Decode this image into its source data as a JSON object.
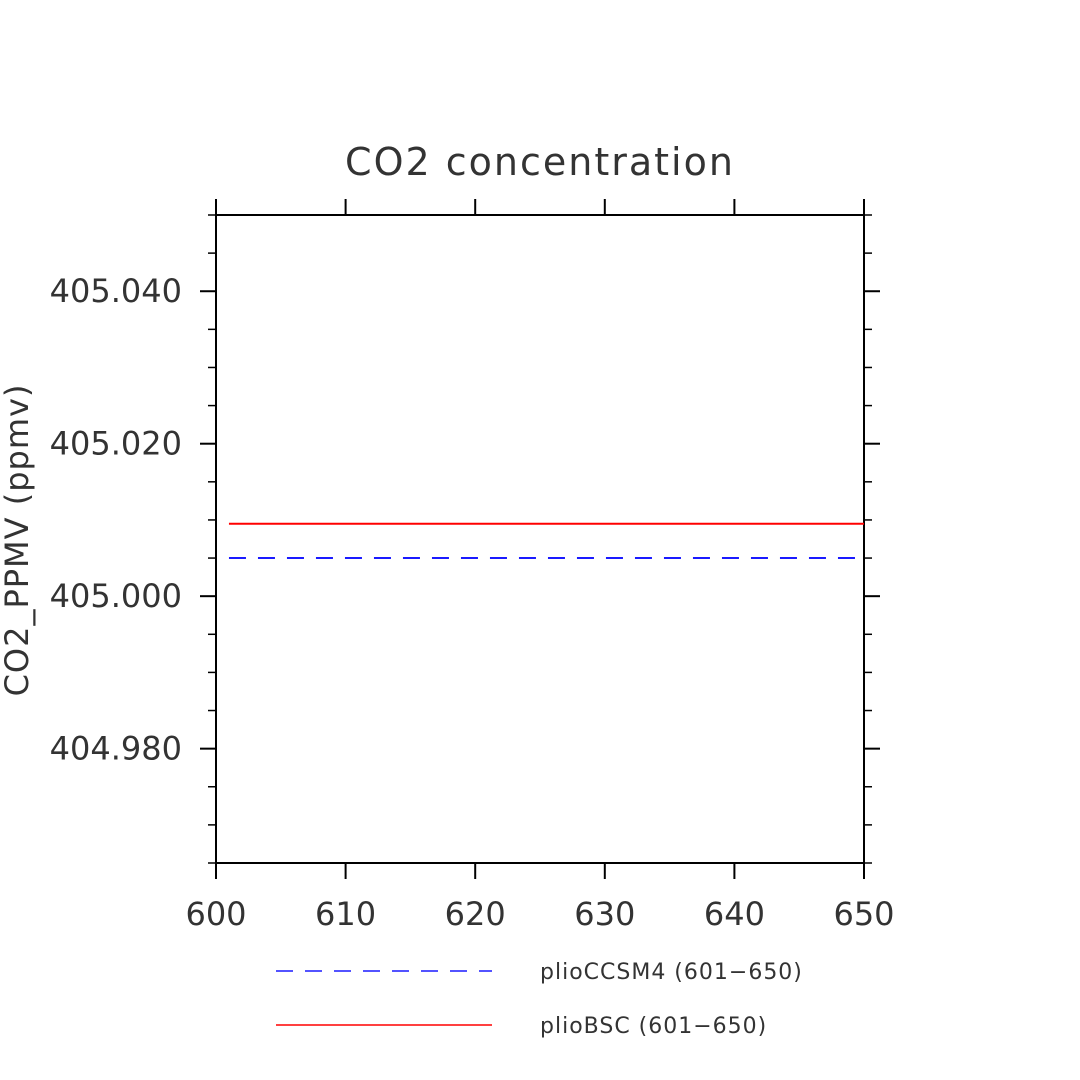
{
  "chart_data": {
    "type": "line",
    "title": "CO2 concentration",
    "xlabel": "",
    "ylabel": "CO2_PPMV  (ppmv)",
    "xlim": [
      600,
      650
    ],
    "ylim": [
      404.965,
      405.05
    ],
    "x_ticks": [
      600,
      610,
      620,
      630,
      640,
      650
    ],
    "x_tick_labels": [
      "600",
      "610",
      "620",
      "630",
      "640",
      "650"
    ],
    "y_ticks": [
      404.98,
      405.0,
      405.02,
      405.04
    ],
    "y_tick_labels": [
      "404.980",
      "405.000",
      "405.020",
      "405.040"
    ],
    "grid": false,
    "legend_position": "bottom",
    "series": [
      {
        "name": "plioCCSM4 (601−650)",
        "x": [
          601,
          650
        ],
        "values": [
          405.005,
          405.005
        ],
        "color": "#1a1aff",
        "dash": "dashed"
      },
      {
        "name": "plioBSC (601−650)",
        "x": [
          601,
          650
        ],
        "values": [
          405.0095,
          405.0095
        ],
        "color": "#ff0000",
        "dash": "solid"
      }
    ]
  }
}
